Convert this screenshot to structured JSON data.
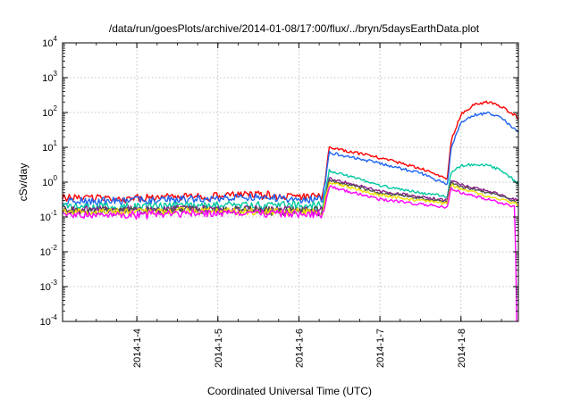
{
  "chart_data": {
    "type": "line",
    "title": "/data/run/goesPlots/archive/2014-01-08/17:00/flux/../bryn/5daysEarthData.plot",
    "xlabel": "Coordinated Universal Time (UTC)",
    "ylabel": "cSv/day",
    "yscale": "log",
    "ylim": [
      0.0001,
      10000
    ],
    "xlim": [
      "2014-01-03 02:00",
      "2014-01-08 17:00"
    ],
    "grid": true,
    "legend": "none",
    "x_ticks": [
      "2014-1-4",
      "2014-1-5",
      "2014-1-6",
      "2014-1-7",
      "2014-1-8"
    ],
    "y_ticks": [
      {
        "base": "10",
        "exp": "-4"
      },
      {
        "base": "10",
        "exp": "-3"
      },
      {
        "base": "10",
        "exp": "-2"
      },
      {
        "base": "10",
        "exp": "-1"
      },
      {
        "base": "10",
        "exp": "0"
      },
      {
        "base": "10",
        "exp": "1"
      },
      {
        "base": "10",
        "exp": "2"
      },
      {
        "base": "10",
        "exp": "3"
      },
      {
        "base": "10",
        "exp": "4"
      }
    ],
    "series": [
      {
        "color": "#ff0000",
        "x": [
          "2014-01-03 02:00",
          "2014-01-04 00:00",
          "2014-01-05 00:00",
          "2014-01-05 12:00",
          "2014-01-06 00:00",
          "2014-01-06 07:00",
          "2014-01-06 09:00",
          "2014-01-07 00:00",
          "2014-01-07 12:00",
          "2014-01-07 20:00",
          "2014-01-07 21:00",
          "2014-01-08 00:00",
          "2014-01-08 04:00",
          "2014-01-08 08:00",
          "2014-01-08 12:00",
          "2014-01-08 17:00"
        ],
        "y": [
          0.35,
          0.35,
          0.4,
          0.45,
          0.38,
          0.38,
          10,
          5,
          2.5,
          1.2,
          15,
          90,
          170,
          200,
          150,
          70
        ]
      },
      {
        "color": "#1e64f0",
        "x": [
          "2014-01-03 02:00",
          "2014-01-04 00:00",
          "2014-01-05 00:00",
          "2014-01-05 12:00",
          "2014-01-06 00:00",
          "2014-01-06 07:00",
          "2014-01-06 09:00",
          "2014-01-07 00:00",
          "2014-01-07 12:00",
          "2014-01-07 20:00",
          "2014-01-07 21:00",
          "2014-01-08 00:00",
          "2014-01-08 04:00",
          "2014-01-08 08:00",
          "2014-01-08 12:00",
          "2014-01-08 17:00"
        ],
        "y": [
          0.28,
          0.3,
          0.35,
          0.38,
          0.32,
          0.32,
          7,
          3.5,
          1.8,
          0.85,
          9,
          50,
          85,
          95,
          70,
          28
        ]
      },
      {
        "color": "#00c8a0",
        "x": [
          "2014-01-03 02:00",
          "2014-01-04 00:00",
          "2014-01-05 00:00",
          "2014-01-06 00:00",
          "2014-01-06 07:00",
          "2014-01-06 09:00",
          "2014-01-07 00:00",
          "2014-01-07 12:00",
          "2014-01-07 20:00",
          "2014-01-07 21:00",
          "2014-01-08 00:00",
          "2014-01-08 04:00",
          "2014-01-08 08:00",
          "2014-01-08 12:00",
          "2014-01-08 17:00"
        ],
        "y": [
          0.2,
          0.2,
          0.22,
          0.22,
          0.22,
          2.2,
          0.8,
          0.5,
          0.38,
          1.8,
          3,
          3.2,
          3,
          2.2,
          0.9
        ]
      },
      {
        "color": "#8c1e8c",
        "x": [
          "2014-01-03 02:00",
          "2014-01-05 00:00",
          "2014-01-06 07:00",
          "2014-01-06 09:00",
          "2014-01-07 00:00",
          "2014-01-07 20:00",
          "2014-01-07 21:00",
          "2014-01-08 00:00",
          "2014-01-08 08:00",
          "2014-01-08 17:00"
        ],
        "y": [
          0.16,
          0.17,
          0.16,
          1.3,
          0.55,
          0.3,
          1.1,
          0.85,
          0.55,
          0.3
        ]
      },
      {
        "color": "#505050",
        "x": [
          "2014-01-03 02:00",
          "2014-01-05 00:00",
          "2014-01-06 07:00",
          "2014-01-06 09:00",
          "2014-01-07 00:00",
          "2014-01-07 20:00",
          "2014-01-07 21:00",
          "2014-01-08 00:00",
          "2014-01-08 08:00",
          "2014-01-08 17:00"
        ],
        "y": [
          0.15,
          0.16,
          0.15,
          1.15,
          0.5,
          0.27,
          1.0,
          0.75,
          0.5,
          0.27
        ]
      },
      {
        "color": "#f0e000",
        "x": [
          "2014-01-03 02:00",
          "2014-01-05 00:00",
          "2014-01-06 07:00",
          "2014-01-06 09:00",
          "2014-01-07 00:00",
          "2014-01-07 20:00",
          "2014-01-07 21:00",
          "2014-01-08 00:00",
          "2014-01-08 08:00",
          "2014-01-08 17:00"
        ],
        "y": [
          0.14,
          0.15,
          0.14,
          1.0,
          0.42,
          0.24,
          0.85,
          0.62,
          0.4,
          0.23
        ]
      },
      {
        "color": "#ff00ff",
        "x": [
          "2014-01-03 02:00",
          "2014-01-04 00:00",
          "2014-01-05 00:00",
          "2014-01-06 00:00",
          "2014-01-06 07:00",
          "2014-01-06 09:00",
          "2014-01-07 00:00",
          "2014-01-07 20:00",
          "2014-01-07 21:00",
          "2014-01-08 00:00",
          "2014-01-08 08:00",
          "2014-01-08 16:00",
          "2014-01-08 16:30"
        ],
        "y": [
          0.11,
          0.12,
          0.13,
          0.12,
          0.12,
          0.75,
          0.32,
          0.19,
          0.65,
          0.5,
          0.32,
          0.2,
          0.0001
        ]
      }
    ]
  }
}
